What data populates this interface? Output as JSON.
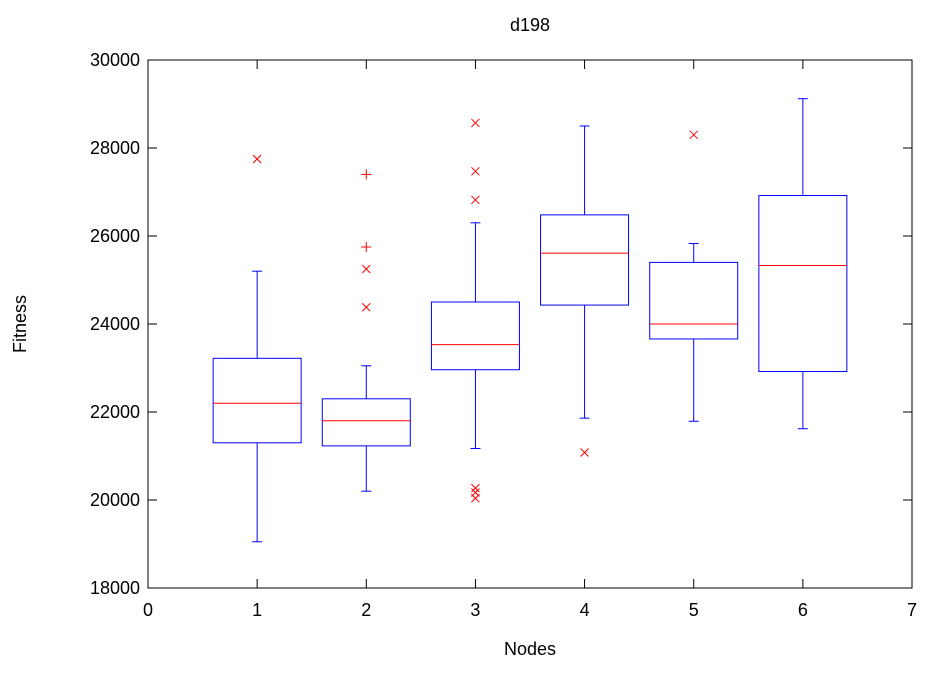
{
  "chart_data": {
    "type": "boxplot",
    "title": "d198",
    "xlabel": "Nodes",
    "ylabel": "Fitness",
    "xlim": [
      0,
      7
    ],
    "ylim": [
      18000,
      30000
    ],
    "xticks": [
      0,
      1,
      2,
      3,
      4,
      5,
      6,
      7
    ],
    "yticks": [
      18000,
      20000,
      22000,
      24000,
      26000,
      28000,
      30000
    ],
    "grid": false,
    "colors": {
      "box": "#0000ff",
      "median": "#ff0000",
      "outlier": "#ff0000",
      "frame": "#000000"
    },
    "boxes": [
      {
        "x": 1,
        "whisker_low": 19050,
        "q1": 21300,
        "median": 22200,
        "q3": 23220,
        "whisker_high": 25200,
        "outliers": [
          {
            "y": 27750,
            "marker": "x"
          }
        ]
      },
      {
        "x": 2,
        "whisker_low": 20200,
        "q1": 21230,
        "median": 21800,
        "q3": 22300,
        "whisker_high": 23050,
        "outliers": [
          {
            "y": 27400,
            "marker": "+"
          },
          {
            "y": 25750,
            "marker": "+"
          },
          {
            "y": 25250,
            "marker": "x"
          },
          {
            "y": 24380,
            "marker": "x"
          }
        ]
      },
      {
        "x": 3,
        "whisker_low": 21170,
        "q1": 22960,
        "median": 23530,
        "q3": 24500,
        "whisker_high": 26300,
        "outliers": [
          {
            "y": 28570,
            "marker": "x"
          },
          {
            "y": 27470,
            "marker": "x"
          },
          {
            "y": 26820,
            "marker": "x"
          },
          {
            "y": 20270,
            "marker": "x"
          },
          {
            "y": 20170,
            "marker": "x"
          },
          {
            "y": 20040,
            "marker": "x"
          }
        ]
      },
      {
        "x": 4,
        "whisker_low": 21860,
        "q1": 24430,
        "median": 25610,
        "q3": 26480,
        "whisker_high": 28500,
        "outliers": [
          {
            "y": 21080,
            "marker": "x"
          }
        ]
      },
      {
        "x": 5,
        "whisker_low": 21790,
        "q1": 23660,
        "median": 24000,
        "q3": 25400,
        "whisker_high": 25830,
        "outliers": [
          {
            "y": 28300,
            "marker": "x"
          }
        ]
      },
      {
        "x": 6,
        "whisker_low": 21620,
        "q1": 22920,
        "median": 25330,
        "q3": 26920,
        "whisker_high": 29120,
        "outliers": []
      }
    ]
  }
}
